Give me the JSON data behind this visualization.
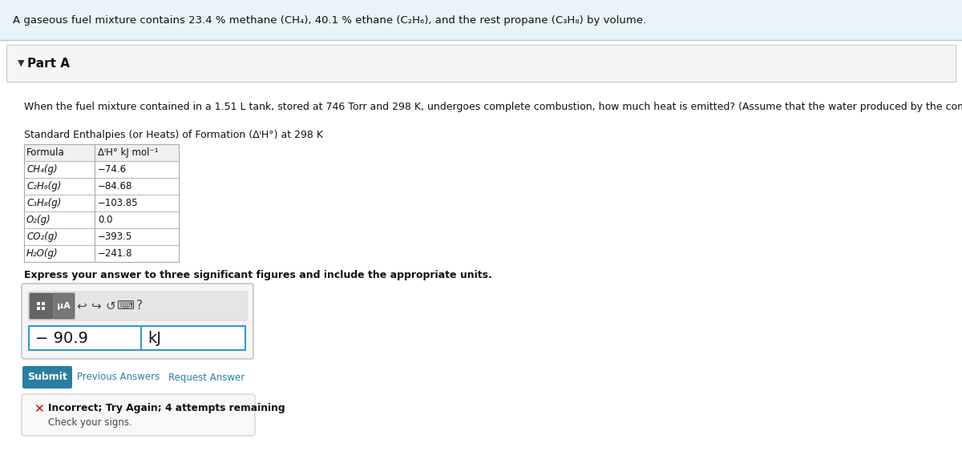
{
  "bg_top": "#e8f4f8",
  "bg_main": "#ffffff",
  "top_text": "A gaseous fuel mixture contains 23.4 % methane (CH₄), 40.1 % ethane (C₂H₆), and the rest propane (C₃H₈) by volume.",
  "part_label_arrow": "▼",
  "part_label_text": "Part A",
  "question_text": "When the fuel mixture contained in a 1.51 L tank, stored at 746 Torr and 298 K, undergoes complete combustion, how much heat is emitted? (Assume that the water produced by the combustion is in the gaseous state.)",
  "table_title": "Standard Enthalpies (or Heats) of Formation (ΔⁱH°) at 298 K",
  "table_col1_header": "Formula",
  "table_col2_header": "ΔⁱH° kJ mol⁻¹",
  "table_rows": [
    [
      "CH₄(g)",
      "−74.6"
    ],
    [
      "C₂H₆(g)",
      "−84.68"
    ],
    [
      "C₃H₈(g)",
      "−103.85"
    ],
    [
      "O₂(g)",
      "0.0"
    ],
    [
      "CO₂(g)",
      "−393.5"
    ],
    [
      "H₂O(g)",
      "−241.8"
    ]
  ],
  "express_text": "Express your answer to three significant figures and include the appropriate units.",
  "answer_value": "− 90.9",
  "answer_unit": "kJ",
  "submit_text": "Submit",
  "submit_color": "#2b7ea1",
  "prev_text": "Previous Answers",
  "request_text": "Request Answer",
  "incorrect_main": "Incorrect; Try Again; 4 attempts remaining",
  "incorrect_sub": "Check your signs.",
  "link_color": "#2b7ea1",
  "error_color": "#cc0000",
  "border_color": "#cccccc",
  "table_border": "#aaaaaa"
}
